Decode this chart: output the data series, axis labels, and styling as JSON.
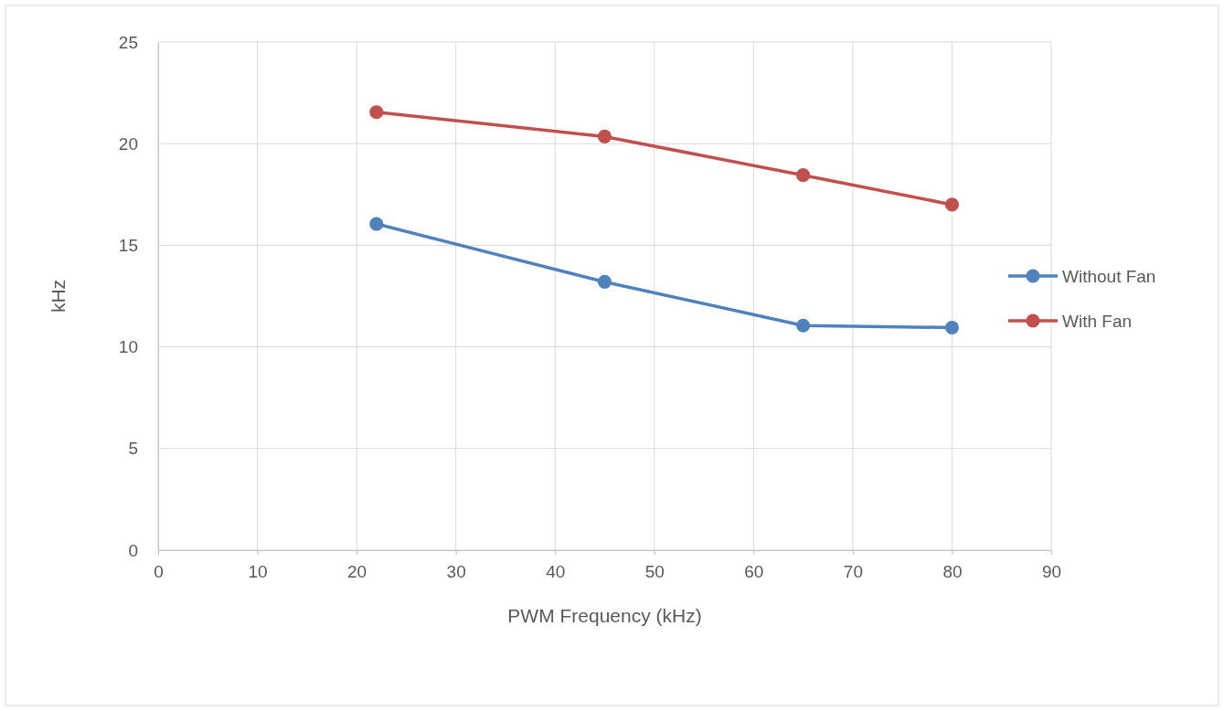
{
  "chart_data": {
    "type": "line",
    "xlabel": "PWM Frequency (kHz)",
    "ylabel": "kHz",
    "xlim": [
      0,
      90
    ],
    "xticks": [
      0,
      10,
      20,
      30,
      40,
      50,
      60,
      70,
      80,
      90
    ],
    "ylim": [
      0,
      25
    ],
    "yticks": [
      0,
      5,
      10,
      15,
      20,
      25
    ],
    "grid": true,
    "legend": "right",
    "marker": "circle",
    "line_style": "solid",
    "series": [
      {
        "name": "Without Fan",
        "color": "#4f81bd",
        "x": [
          22,
          45,
          65,
          80
        ],
        "values": [
          16.05,
          13.2,
          11.05,
          10.95
        ]
      },
      {
        "name": "With Fan",
        "color": "#c0504d",
        "x": [
          22,
          45,
          65,
          80
        ],
        "values": [
          21.55,
          20.35,
          18.45,
          17.0
        ]
      }
    ]
  }
}
